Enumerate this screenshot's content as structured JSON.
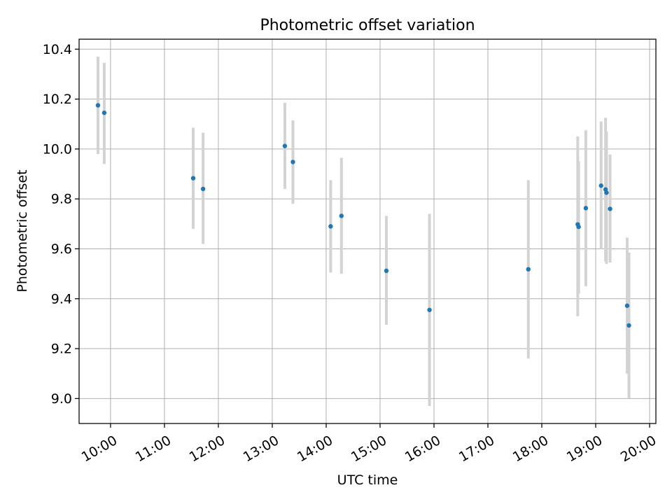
{
  "chart_data": {
    "type": "scatter",
    "title": "Photometric offset variation",
    "xlabel": "UTC time",
    "ylabel": "Photometric offset",
    "grid": true,
    "xlim": [
      "09:25",
      "20:07"
    ],
    "ylim": [
      8.9,
      10.44
    ],
    "x_ticks": [
      "10:00",
      "11:00",
      "12:00",
      "13:00",
      "14:00",
      "15:00",
      "16:00",
      "17:00",
      "18:00",
      "19:00",
      "20:00"
    ],
    "y_ticks": [
      9.0,
      9.2,
      9.4,
      9.6,
      9.8,
      10.0,
      10.2,
      10.4
    ],
    "y_tick_labels": [
      "9.0",
      "9.2",
      "9.4",
      "9.6",
      "9.8",
      "10.0",
      "10.2",
      "10.4"
    ],
    "colors": {
      "point": "#1f77b4",
      "errorbar": "#d3d3d3",
      "grid": "#b0b0b0"
    },
    "points": [
      {
        "time": "09:46",
        "y": 10.175,
        "ylo": 9.98,
        "yhi": 10.37
      },
      {
        "time": "09:53",
        "y": 10.145,
        "ylo": 9.94,
        "yhi": 10.345
      },
      {
        "time": "11:32",
        "y": 9.883,
        "ylo": 9.68,
        "yhi": 10.085
      },
      {
        "time": "11:43",
        "y": 9.84,
        "ylo": 9.62,
        "yhi": 10.065
      },
      {
        "time": "13:14",
        "y": 10.012,
        "ylo": 9.84,
        "yhi": 10.185
      },
      {
        "time": "13:23",
        "y": 9.948,
        "ylo": 9.78,
        "yhi": 10.115
      },
      {
        "time": "14:05",
        "y": 9.69,
        "ylo": 9.505,
        "yhi": 9.875
      },
      {
        "time": "14:17",
        "y": 9.732,
        "ylo": 9.5,
        "yhi": 9.965
      },
      {
        "time": "15:07",
        "y": 9.512,
        "ylo": 9.295,
        "yhi": 9.732
      },
      {
        "time": "15:55",
        "y": 9.355,
        "ylo": 8.97,
        "yhi": 9.74
      },
      {
        "time": "17:45",
        "y": 9.518,
        "ylo": 9.16,
        "yhi": 9.875
      },
      {
        "time": "18:40",
        "y": 9.698,
        "ylo": 9.33,
        "yhi": 10.05
      },
      {
        "time": "18:41",
        "y": 9.688,
        "ylo": 9.42,
        "yhi": 9.95
      },
      {
        "time": "18:49",
        "y": 9.763,
        "ylo": 9.45,
        "yhi": 10.075
      },
      {
        "time": "19:06",
        "y": 9.853,
        "ylo": 9.6,
        "yhi": 10.11
      },
      {
        "time": "19:11",
        "y": 9.838,
        "ylo": 9.55,
        "yhi": 10.125
      },
      {
        "time": "19:12",
        "y": 9.825,
        "ylo": 9.54,
        "yhi": 10.07
      },
      {
        "time": "19:16",
        "y": 9.76,
        "ylo": 9.545,
        "yhi": 9.978
      },
      {
        "time": "19:35",
        "y": 9.372,
        "ylo": 9.1,
        "yhi": 9.645
      },
      {
        "time": "19:37",
        "y": 9.293,
        "ylo": 9.0,
        "yhi": 9.585
      }
    ]
  }
}
